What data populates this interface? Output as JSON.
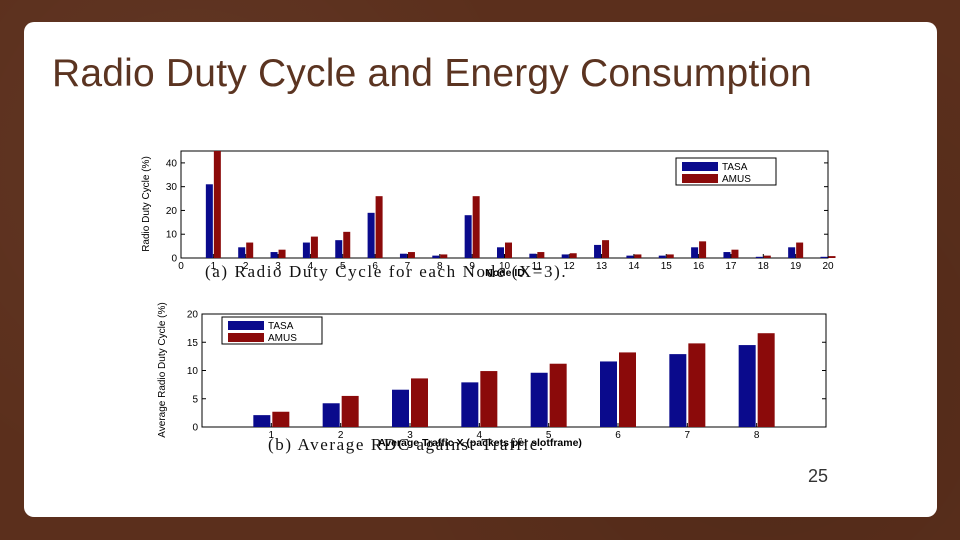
{
  "slide": {
    "title": "Radio Duty Cycle and Energy Consumption",
    "page_number": "25"
  },
  "colors": {
    "tasa": "#0a0a8c",
    "amus": "#8b0a0a"
  },
  "chart_data": [
    {
      "type": "bar",
      "title": "",
      "caption": "(a) Radio Duty Cycle for each Node (X=3).",
      "xlabel": "Node ID",
      "ylabel": "Radio Duty Cycle (%)",
      "x_ticks": [
        "0",
        "1",
        "2",
        "3",
        "4",
        "5",
        "6",
        "7",
        "8",
        "9",
        "10",
        "11",
        "12",
        "13",
        "14",
        "15",
        "16",
        "17",
        "18",
        "19",
        "20"
      ],
      "y_ticks": [
        "0",
        "10",
        "20",
        "30",
        "40"
      ],
      "ylim": [
        0,
        45
      ],
      "categories": [
        "1",
        "2",
        "3",
        "4",
        "5",
        "6",
        "7",
        "8",
        "9",
        "10",
        "11",
        "12",
        "13",
        "14",
        "15",
        "16",
        "17",
        "18",
        "19",
        "20"
      ],
      "series": [
        {
          "name": "TASA",
          "values": [
            31,
            4.5,
            2.5,
            6.5,
            7.5,
            19,
            1.8,
            1,
            18,
            4.5,
            1.8,
            1.5,
            5.5,
            1,
            1,
            4.5,
            2.5,
            0.5,
            4.5,
            0.5
          ]
        },
        {
          "name": "AMUS",
          "values": [
            45,
            6.5,
            3.5,
            9,
            11,
            26,
            2.5,
            1.5,
            26,
            6.5,
            2.5,
            2,
            7.5,
            1.5,
            1.5,
            7,
            3.5,
            1,
            6.5,
            0.8
          ]
        }
      ],
      "legend": [
        "TASA",
        "AMUS"
      ],
      "legend_position": "top-right"
    },
    {
      "type": "bar",
      "title": "",
      "caption": "(b) Average RDC against Traffic.",
      "xlabel": "Average Traffic X (packets per slotframe)",
      "ylabel": "Average Radio Duty Cycle (%)",
      "y_ticks": [
        "0",
        "5",
        "10",
        "15",
        "20"
      ],
      "ylim": [
        0,
        20
      ],
      "categories": [
        "1",
        "2",
        "3",
        "4",
        "5",
        "6",
        "7",
        "8"
      ],
      "series": [
        {
          "name": "TASA",
          "values": [
            2.1,
            4.2,
            6.6,
            7.9,
            9.6,
            11.6,
            12.9,
            14.5
          ]
        },
        {
          "name": "AMUS",
          "values": [
            2.7,
            5.5,
            8.6,
            9.9,
            11.2,
            13.2,
            14.8,
            16.6
          ]
        }
      ],
      "legend": [
        "TASA",
        "AMUS"
      ],
      "legend_position": "top-left"
    }
  ]
}
